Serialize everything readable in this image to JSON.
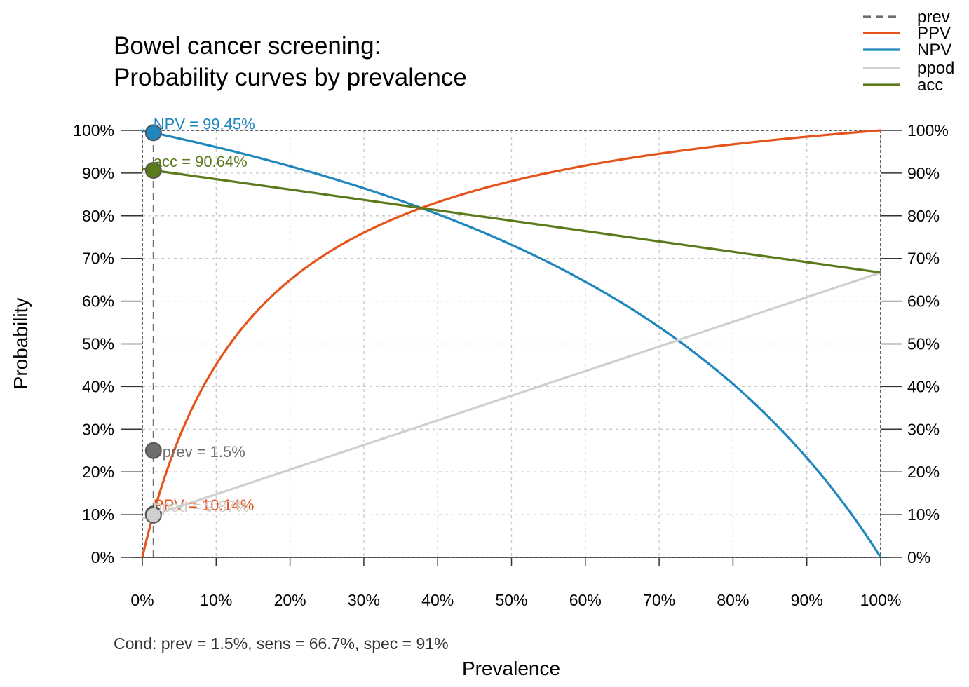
{
  "chart_data": {
    "type": "line",
    "title": [
      "Bowel cancer screening:",
      "Probability curves by prevalence"
    ],
    "xlabel": "Prevalence",
    "ylabel": "Probability",
    "xlim": [
      0,
      1
    ],
    "ylim": [
      0,
      1
    ],
    "x_ticks": [
      0,
      0.1,
      0.2,
      0.3,
      0.4,
      0.5,
      0.6,
      0.7,
      0.8,
      0.9,
      1
    ],
    "x_tick_labels": [
      "0%",
      "10%",
      "20%",
      "30%",
      "40%",
      "50%",
      "60%",
      "70%",
      "80%",
      "90%",
      "100%"
    ],
    "y_ticks": [
      0,
      0.1,
      0.2,
      0.3,
      0.4,
      0.5,
      0.6,
      0.7,
      0.8,
      0.9,
      1
    ],
    "y_tick_labels": [
      "0%",
      "10%",
      "20%",
      "30%",
      "40%",
      "50%",
      "60%",
      "70%",
      "80%",
      "90%",
      "100%"
    ],
    "right_axis": true,
    "grid": true,
    "legend_position": "top-right",
    "condition": "Cond:  prev = 1.5%, sens = 66.7%, spec = 91%",
    "params": {
      "prev": 0.015,
      "sens": 0.667,
      "spec": 0.91
    },
    "series": [
      {
        "name": "prev",
        "color": "#6e6e6e",
        "style": "dashed",
        "x": [
          0.015,
          0.015
        ],
        "y": [
          0,
          1
        ]
      },
      {
        "name": "PPV",
        "color": "#e4541b",
        "x": [
          0,
          0.015,
          0.05,
          0.1,
          0.15,
          0.2,
          0.25,
          0.3,
          0.4,
          0.5,
          0.6,
          0.7,
          0.8,
          0.9,
          1
        ],
        "y": [
          0,
          0.1014,
          0.281,
          0.452,
          0.567,
          0.649,
          0.712,
          0.761,
          0.832,
          0.881,
          0.917,
          0.945,
          0.967,
          0.985,
          1
        ]
      },
      {
        "name": "NPV",
        "color": "#1f87bd",
        "x": [
          0,
          0.015,
          0.1,
          0.2,
          0.3,
          0.4,
          0.5,
          0.6,
          0.7,
          0.8,
          0.9,
          1
        ],
        "y": [
          1,
          0.9945,
          0.961,
          0.916,
          0.864,
          0.803,
          0.732,
          0.647,
          0.543,
          0.412,
          0.238,
          0
        ]
      },
      {
        "name": "ppod",
        "color": "#cfcfcf",
        "x": [
          0,
          0.015,
          0.5,
          1
        ],
        "y": [
          0.09,
          0.0987,
          0.3785,
          0.667
        ]
      },
      {
        "name": "acc",
        "color": "#5a7a1c",
        "x": [
          0,
          0.015,
          0.5,
          1
        ],
        "y": [
          0.91,
          0.9064,
          0.7885,
          0.667
        ]
      }
    ],
    "points": [
      {
        "series": "NPV",
        "x": 0.015,
        "y": 0.9945,
        "label": "NPV = 99.45%",
        "fill": "#1f87bd",
        "text_color": "#1f87bd"
      },
      {
        "series": "acc",
        "x": 0.015,
        "y": 0.9064,
        "label": "acc = 90.64%",
        "fill": "#5a7a1c",
        "text_color": "#5a7a1c"
      },
      {
        "series": "prev",
        "x": 0.015,
        "y": 0.25,
        "label": "prev = 1.5%",
        "fill": "#6e6e6e",
        "text_color": "#6e6e6e"
      },
      {
        "series": "PPV",
        "x": 0.015,
        "y": 0.1014,
        "label": "PPV = 10.14%",
        "fill": "#e4541b",
        "text_color": "#e4541b"
      },
      {
        "series": "ppod",
        "x": 0.015,
        "y": 0.0987,
        "label": "ppod = 9.87%",
        "fill": "#d0d0d0",
        "text_color": "#cfcfcf"
      }
    ]
  }
}
